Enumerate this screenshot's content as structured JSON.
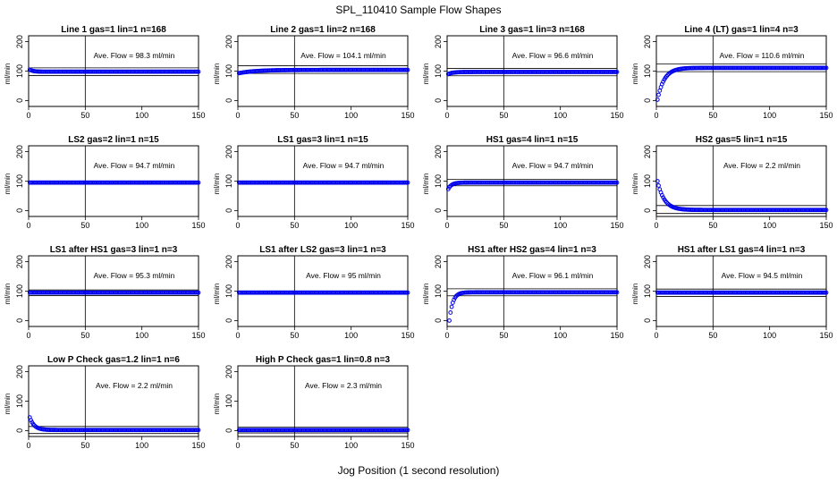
{
  "title": "SPL_110410  Sample Flow Shapes",
  "xlabel": "Jog Position (1 second resolution)",
  "colors": {
    "points": "#0000ee",
    "axes": "#000000"
  },
  "chart_data": [
    {
      "type": "scatter",
      "title": "Line 1 gas=1 lin=1 n=168",
      "ylabel": "ml/min",
      "annotation": "Ave. Flow =  98.3  ml/min",
      "xlim": [
        0,
        150
      ],
      "ylim": [
        -20,
        220
      ],
      "xticks": [
        0,
        50,
        100,
        150
      ],
      "yticks": [
        0,
        100,
        200
      ],
      "hlines": [
        85,
        111
      ],
      "vline": 50,
      "series": [
        {
          "shape": "flat",
          "start": 105,
          "level": 98,
          "x_start": 1,
          "x_end": 150,
          "tau": 3
        }
      ]
    },
    {
      "type": "scatter",
      "title": "Line 2 gas=1 lin=2 n=168",
      "ylabel": "ml/min",
      "annotation": "Ave. Flow =  104.1  ml/min",
      "xlim": [
        0,
        150
      ],
      "ylim": [
        -20,
        220
      ],
      "xticks": [
        0,
        50,
        100,
        150
      ],
      "yticks": [
        0,
        100,
        200
      ],
      "hlines": [
        92,
        118
      ],
      "vline": 50,
      "series": [
        {
          "shape": "rise",
          "start": 93,
          "level": 104,
          "x_start": 1,
          "x_end": 150,
          "tau": 15
        }
      ]
    },
    {
      "type": "scatter",
      "title": "Line 3 gas=1 lin=3 n=168",
      "ylabel": "ml/min",
      "annotation": "Ave. Flow =  96.6  ml/min",
      "xlim": [
        0,
        150
      ],
      "ylim": [
        -20,
        220
      ],
      "xticks": [
        0,
        50,
        100,
        150
      ],
      "yticks": [
        0,
        100,
        200
      ],
      "hlines": [
        84,
        109
      ],
      "vline": 50,
      "series": [
        {
          "shape": "rise",
          "start": 90,
          "level": 97,
          "x_start": 1,
          "x_end": 150,
          "tau": 4
        }
      ]
    },
    {
      "type": "scatter",
      "title": "Line 4 (LT) gas=1 lin=4 n=3",
      "ylabel": "ml/min",
      "annotation": "Ave. Flow =  110.6  ml/min",
      "xlim": [
        0,
        150
      ],
      "ylim": [
        -20,
        220
      ],
      "xticks": [
        0,
        50,
        100,
        150
      ],
      "yticks": [
        0,
        100,
        200
      ],
      "hlines": [
        98,
        124
      ],
      "vline": 50,
      "series": [
        {
          "shape": "rise",
          "start": 3,
          "level": 111,
          "x_start": 1,
          "x_end": 150,
          "tau": 6
        }
      ]
    },
    {
      "type": "scatter",
      "title": "LS2 gas=2 lin=1 n=15",
      "ylabel": "ml/min",
      "annotation": "Ave. Flow =  94.7  ml/min",
      "xlim": [
        0,
        150
      ],
      "ylim": [
        -20,
        220
      ],
      "xticks": [
        0,
        50,
        100,
        150
      ],
      "yticks": [
        0,
        100,
        200
      ],
      "hlines": [
        89,
        100
      ],
      "vline": 50,
      "series": [
        {
          "shape": "flat",
          "start": 95,
          "level": 95,
          "x_start": 1,
          "x_end": 150,
          "tau": 3
        }
      ]
    },
    {
      "type": "scatter",
      "title": "LS1 gas=3 lin=1 n=15",
      "ylabel": "ml/min",
      "annotation": "Ave. Flow =  94.7  ml/min",
      "xlim": [
        0,
        150
      ],
      "ylim": [
        -20,
        220
      ],
      "xticks": [
        0,
        50,
        100,
        150
      ],
      "yticks": [
        0,
        100,
        200
      ],
      "hlines": [
        89,
        100
      ],
      "vline": 50,
      "series": [
        {
          "shape": "flat",
          "start": 95,
          "level": 95,
          "x_start": 1,
          "x_end": 150,
          "tau": 3
        }
      ]
    },
    {
      "type": "scatter",
      "title": "HS1 gas=4 lin=1 n=15",
      "ylabel": "ml/min",
      "annotation": "Ave. Flow =  94.7  ml/min",
      "xlim": [
        0,
        150
      ],
      "ylim": [
        -20,
        220
      ],
      "xticks": [
        0,
        50,
        100,
        150
      ],
      "yticks": [
        0,
        100,
        200
      ],
      "hlines": [
        84,
        106
      ],
      "vline": 50,
      "series": [
        {
          "shape": "rise",
          "start": 73,
          "level": 95,
          "x_start": 1,
          "x_end": 150,
          "tau": 3
        }
      ]
    },
    {
      "type": "scatter",
      "title": "HS2 gas=5 lin=1 n=15",
      "ylabel": "ml/min",
      "annotation": "Ave. Flow =  2.2  ml/min",
      "xlim": [
        0,
        150
      ],
      "ylim": [
        -20,
        220
      ],
      "xticks": [
        0,
        50,
        100,
        150
      ],
      "yticks": [
        0,
        100,
        200
      ],
      "hlines": [
        -10,
        17
      ],
      "vline": 50,
      "series": [
        {
          "shape": "decay",
          "start": 100,
          "level": 2,
          "x_start": 1,
          "x_end": 150,
          "tau": 6
        }
      ]
    },
    {
      "type": "scatter",
      "title": "LS1 after HS1 gas=3 lin=1 n=3",
      "ylabel": "ml/min",
      "annotation": "Ave. Flow =  95.3  ml/min",
      "xlim": [
        0,
        150
      ],
      "ylim": [
        -20,
        220
      ],
      "xticks": [
        0,
        50,
        100,
        150
      ],
      "yticks": [
        0,
        100,
        200
      ],
      "hlines": [
        85,
        104
      ],
      "vline": 50,
      "series": [
        {
          "shape": "flat",
          "start": 95,
          "level": 95,
          "x_start": 1,
          "x_end": 150,
          "tau": 3
        }
      ]
    },
    {
      "type": "scatter",
      "title": "LS1 after LS2 gas=3 lin=1 n=3",
      "ylabel": "ml/min",
      "annotation": "Ave. Flow =  95  ml/min",
      "xlim": [
        0,
        150
      ],
      "ylim": [
        -20,
        220
      ],
      "xticks": [
        0,
        50,
        100,
        150
      ],
      "yticks": [
        0,
        100,
        200
      ],
      "hlines": [
        89,
        100
      ],
      "vline": 50,
      "series": [
        {
          "shape": "flat",
          "start": 95,
          "level": 95,
          "x_start": 1,
          "x_end": 150,
          "tau": 3
        }
      ]
    },
    {
      "type": "scatter",
      "title": "HS1 after HS2 gas=4 lin=1 n=3",
      "ylabel": "ml/min",
      "annotation": "Ave. Flow =  96.1  ml/min",
      "xlim": [
        0,
        150
      ],
      "ylim": [
        -20,
        220
      ],
      "xticks": [
        0,
        50,
        100,
        150
      ],
      "yticks": [
        0,
        100,
        200
      ],
      "hlines": [
        84,
        108
      ],
      "vline": 50,
      "series": [
        {
          "shape": "rise",
          "start": 0,
          "level": 96,
          "x_start": 2,
          "x_end": 150,
          "tau": 3
        }
      ]
    },
    {
      "type": "scatter",
      "title": "HS1 after LS1 gas=4 lin=1 n=3",
      "ylabel": "ml/min",
      "annotation": "Ave. Flow =  94.5  ml/min",
      "xlim": [
        0,
        150
      ],
      "ylim": [
        -20,
        220
      ],
      "xticks": [
        0,
        50,
        100,
        150
      ],
      "yticks": [
        0,
        100,
        200
      ],
      "hlines": [
        82,
        107
      ],
      "vline": 50,
      "series": [
        {
          "shape": "flat",
          "start": 95,
          "level": 95,
          "x_start": 1,
          "x_end": 150,
          "tau": 3
        }
      ]
    },
    {
      "type": "scatter",
      "title": "Low P Check gas=1.2 lin=1 n=6",
      "ylabel": "ml/min",
      "annotation": "Ave. Flow =  2.2  ml/min",
      "xlim": [
        0,
        150
      ],
      "ylim": [
        -20,
        220
      ],
      "xticks": [
        0,
        50,
        100,
        150
      ],
      "yticks": [
        0,
        100,
        200
      ],
      "hlines": [
        -10,
        14
      ],
      "vline": 50,
      "series": [
        {
          "shape": "decay",
          "start": 45,
          "level": 2,
          "x_start": 1,
          "x_end": 150,
          "tau": 4
        }
      ]
    },
    {
      "type": "scatter",
      "title": "High P Check gas=1 lin=0.8 n=3",
      "ylabel": "ml/min",
      "annotation": "Ave. Flow =  2.3  ml/min",
      "xlim": [
        0,
        150
      ],
      "ylim": [
        -20,
        220
      ],
      "xticks": [
        0,
        50,
        100,
        150
      ],
      "yticks": [
        0,
        100,
        200
      ],
      "hlines": [
        -8,
        12
      ],
      "vline": 50,
      "series": [
        {
          "shape": "flat",
          "start": 2,
          "level": 2,
          "x_start": 1,
          "x_end": 150,
          "tau": 3
        }
      ]
    }
  ]
}
